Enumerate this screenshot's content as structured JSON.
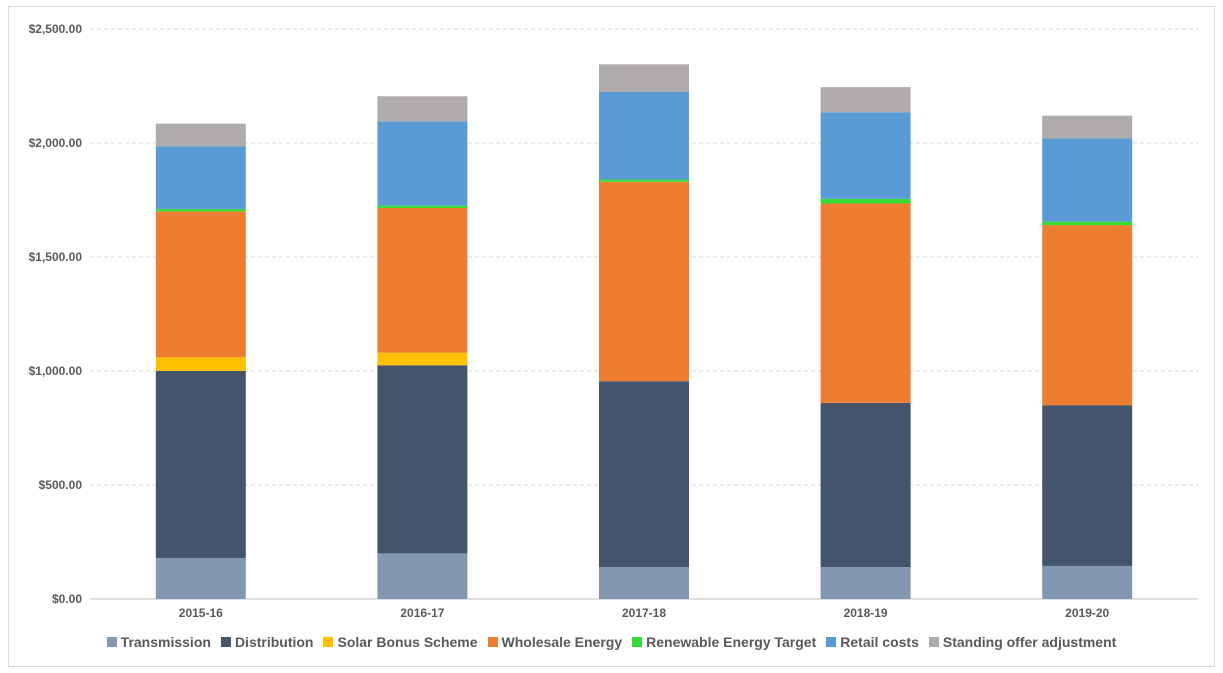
{
  "chart_data": {
    "type": "bar",
    "stacked": true,
    "categories": [
      "2015-16",
      "2016-17",
      "2017-18",
      "2018-19",
      "2019-20"
    ],
    "ylim": [
      0,
      2500
    ],
    "yticks": [
      "$0.00",
      "$500.00",
      "$1,000.00",
      "$1,500.00",
      "$2,000.00",
      "$2,500.00"
    ],
    "ytick_values": [
      0,
      500,
      1000,
      1500,
      2000,
      2500
    ],
    "grid": true,
    "legend_position": "bottom",
    "series": [
      {
        "name": "Transmission",
        "color": "#8497b0",
        "values": [
          180,
          200,
          140,
          140,
          145
        ]
      },
      {
        "name": "Distribution",
        "color": "#44546a",
        "values": [
          820,
          825,
          815,
          720,
          705
        ]
      },
      {
        "name": "Solar Bonus Scheme",
        "color": "#ffc000",
        "values": [
          60,
          55,
          0,
          0,
          0
        ]
      },
      {
        "name": "Wholesale Energy",
        "color": "#ed7d31",
        "values": [
          640,
          635,
          875,
          875,
          790
        ]
      },
      {
        "name": "Renewable Energy Target",
        "color": "#33dd33",
        "values": [
          10,
          10,
          10,
          20,
          15
        ]
      },
      {
        "name": "Retail costs",
        "color": "#5b9bd5",
        "values": [
          275,
          370,
          385,
          380,
          365
        ]
      },
      {
        "name": "Standing offer adjustment",
        "color": "#afabab",
        "values": [
          100,
          110,
          120,
          110,
          100
        ]
      }
    ]
  }
}
